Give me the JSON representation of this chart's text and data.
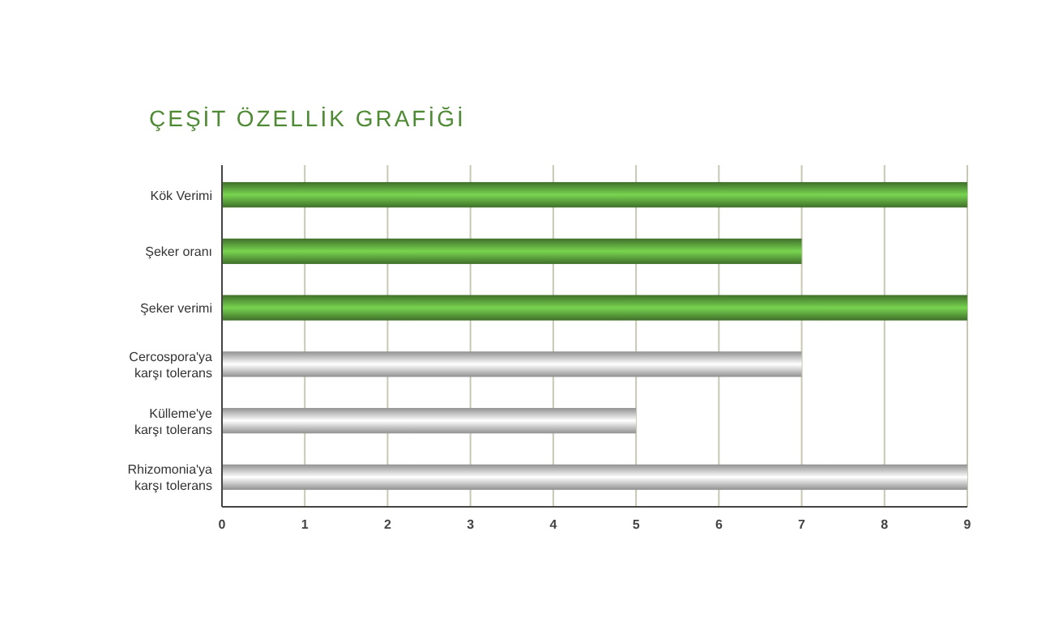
{
  "chart_data": {
    "type": "bar",
    "orientation": "horizontal",
    "title": "ÇEŞİT ÖZELLİK GRAFİĞİ",
    "categories": [
      "Kök Verimi",
      "Şeker oranı",
      "Şeker verimi",
      "Cercospora'ya\nkarşı tolerans",
      "Külleme'ye\nkarşı tolerans",
      "Rhizomonia'ya\nkarşı tolerans"
    ],
    "values": [
      9,
      7,
      9,
      7,
      5,
      9
    ],
    "colors": [
      "#4e8a34",
      "#4e8a34",
      "#4e8a34",
      "#b4b4b4",
      "#b4b4b4",
      "#b4b4b4"
    ],
    "xlim": [
      0,
      9
    ],
    "xticks": [
      0,
      1,
      2,
      3,
      4,
      5,
      6,
      7,
      8,
      9
    ],
    "grid": "x"
  }
}
